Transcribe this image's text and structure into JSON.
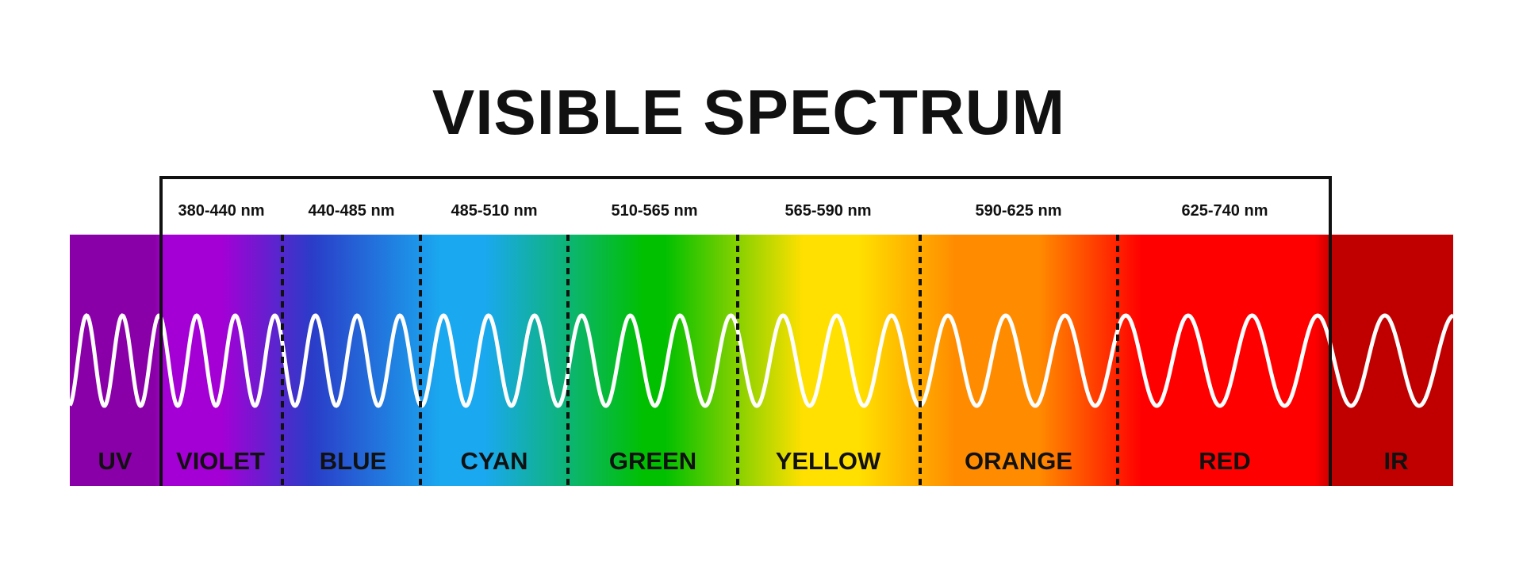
{
  "title": "VISIBLE SPECTRUM",
  "bands": [
    {
      "name": "UV",
      "range": ""
    },
    {
      "name": "VIOLET",
      "range": "380-440 nm"
    },
    {
      "name": "BLUE",
      "range": "440-485 nm"
    },
    {
      "name": "CYAN",
      "range": "485-510 nm"
    },
    {
      "name": "GREEN",
      "range": "510-565 nm"
    },
    {
      "name": "YELLOW",
      "range": "565-590 nm"
    },
    {
      "name": "ORANGE",
      "range": "590-625 nm"
    },
    {
      "name": "RED",
      "range": "625-740 nm"
    },
    {
      "name": "IR",
      "range": ""
    }
  ],
  "colors": {
    "uv": "#8a00a8",
    "violet": "#a400d6",
    "blue": "#2a3cc8",
    "cyan": "#1aa8f0",
    "green": "#00c000",
    "yellow": "#ffe000",
    "orange": "#ff8c00",
    "red": "#ff0000",
    "ir": "#c00000",
    "wave": "#ffffff",
    "bracket": "#111111"
  }
}
